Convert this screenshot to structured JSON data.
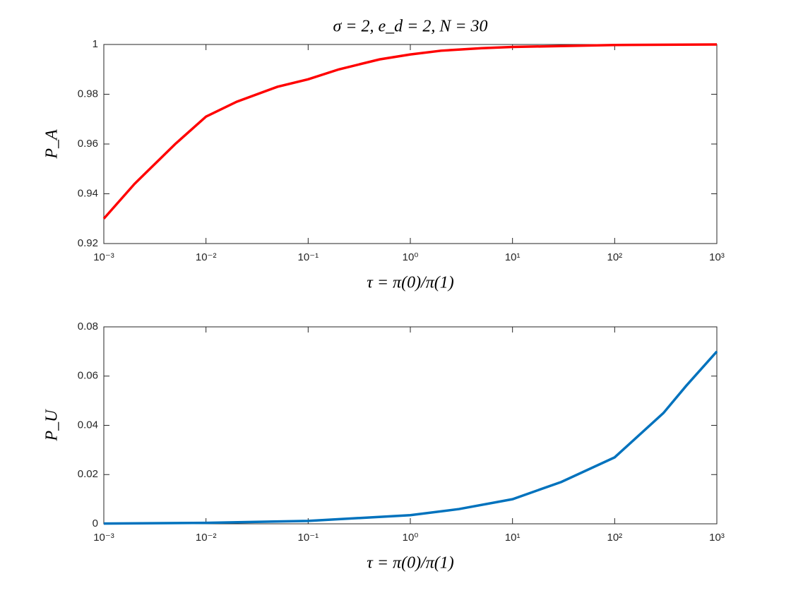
{
  "chart_data": [
    {
      "type": "line",
      "title": "σ = 2, e_d = 2, N = 30",
      "xlabel": "τ = π(0)/π(1)",
      "ylabel": "P_A",
      "xscale": "log",
      "x": [
        0.001,
        0.002,
        0.005,
        0.01,
        0.02,
        0.05,
        0.1,
        0.2,
        0.5,
        1,
        2,
        5,
        10,
        100,
        1000
      ],
      "series": [
        {
          "name": "P_A",
          "color": "#ff0000",
          "values": [
            0.93,
            0.944,
            0.96,
            0.971,
            0.977,
            0.983,
            0.986,
            0.99,
            0.994,
            0.996,
            0.9975,
            0.9985,
            0.999,
            0.9998,
            1.0
          ]
        }
      ],
      "xlim": [
        0.001,
        1000
      ],
      "xticks": [
        {
          "value": 0.001,
          "label": "10⁻³"
        },
        {
          "value": 0.01,
          "label": "10⁻²"
        },
        {
          "value": 0.1,
          "label": "10⁻¹"
        },
        {
          "value": 1,
          "label": "10⁰"
        },
        {
          "value": 10,
          "label": "10¹"
        },
        {
          "value": 100,
          "label": "10²"
        },
        {
          "value": 1000,
          "label": "10³"
        }
      ],
      "ylim": [
        0.92,
        1
      ],
      "yticks": [
        0.92,
        0.94,
        0.96,
        0.98,
        1
      ]
    },
    {
      "type": "line",
      "xlabel": "τ = π(0)/π(1)",
      "ylabel": "P_U",
      "xscale": "log",
      "x": [
        0.001,
        0.01,
        0.1,
        1,
        3,
        10,
        30,
        100,
        300,
        500,
        1000
      ],
      "series": [
        {
          "name": "P_U",
          "color": "#0072bd",
          "values": [
            0.0001,
            0.0004,
            0.0012,
            0.0035,
            0.006,
            0.01,
            0.017,
            0.027,
            0.045,
            0.056,
            0.07
          ]
        }
      ],
      "xlim": [
        0.001,
        1000
      ],
      "xticks": [
        {
          "value": 0.001,
          "label": "10⁻³"
        },
        {
          "value": 0.01,
          "label": "10⁻²"
        },
        {
          "value": 0.1,
          "label": "10⁻¹"
        },
        {
          "value": 1,
          "label": "10⁰"
        },
        {
          "value": 10,
          "label": "10¹"
        },
        {
          "value": 100,
          "label": "10²"
        },
        {
          "value": 1000,
          "label": "10³"
        }
      ],
      "ylim": [
        0,
        0.08
      ],
      "yticks": [
        0,
        0.02,
        0.04,
        0.06,
        0.08
      ]
    }
  ]
}
